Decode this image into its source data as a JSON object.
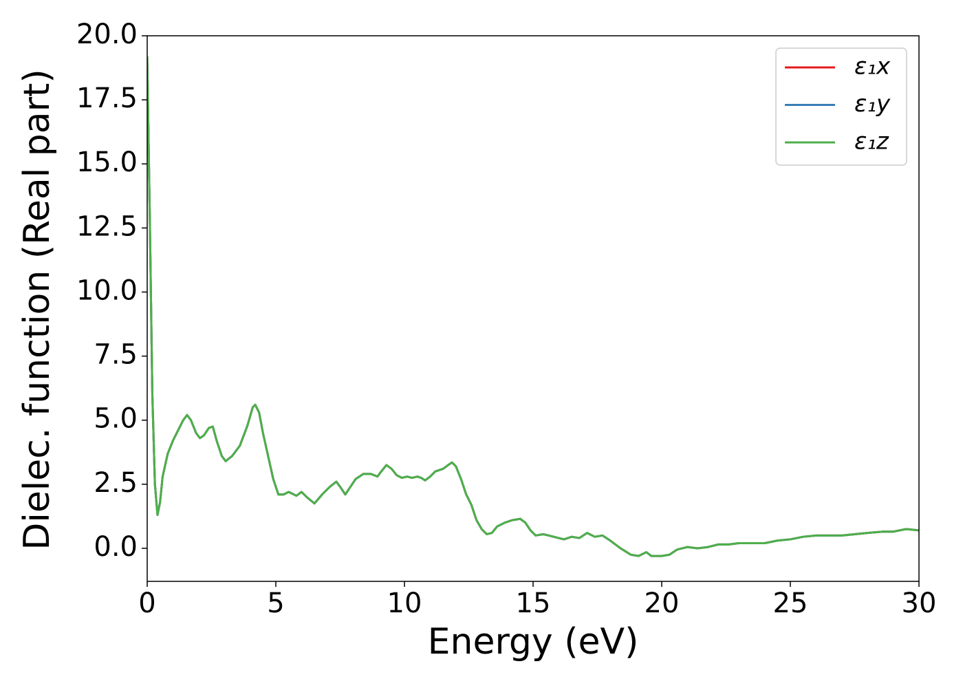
{
  "chart_data": {
    "type": "line",
    "x_label": "Energy (eV)",
    "y_label": "Dielec. function (Real part)",
    "xlim": [
      0,
      30
    ],
    "ylim": [
      -1.29,
      20
    ],
    "xticks": [
      0,
      5,
      10,
      15,
      20,
      25,
      30
    ],
    "yticks": [
      {
        "value": 0,
        "label": "0.0"
      },
      2.5,
      {
        "value": 5,
        "label": "5.0"
      },
      7.5,
      {
        "value": 10,
        "label": "10.0"
      },
      12.5,
      {
        "value": 15,
        "label": "15.0"
      },
      17.5,
      {
        "value": 20,
        "label": "20.0"
      }
    ],
    "legend": "upper right",
    "grid": false,
    "x": [
      0,
      0.1,
      0.2,
      0.3,
      0.4,
      0.5,
      0.6,
      0.8,
      1.0,
      1.2,
      1.4,
      1.55,
      1.7,
      1.9,
      2.05,
      2.2,
      2.4,
      2.55,
      2.7,
      2.9,
      3.05,
      3.3,
      3.6,
      3.9,
      4.1,
      4.2,
      4.35,
      4.5,
      4.7,
      4.9,
      5.1,
      5.3,
      5.5,
      5.8,
      6.0,
      6.2,
      6.5,
      6.8,
      7.1,
      7.35,
      7.5,
      7.7,
      7.9,
      8.1,
      8.4,
      8.7,
      8.95,
      9.1,
      9.3,
      9.5,
      9.7,
      9.9,
      10.1,
      10.3,
      10.5,
      10.65,
      10.8,
      11.0,
      11.2,
      11.5,
      11.7,
      11.85,
      12.0,
      12.2,
      12.4,
      12.6,
      12.8,
      13.0,
      13.2,
      13.4,
      13.6,
      13.9,
      14.2,
      14.5,
      14.7,
      14.9,
      15.1,
      15.4,
      15.8,
      16.2,
      16.5,
      16.8,
      17.1,
      17.4,
      17.7,
      18.0,
      18.4,
      18.8,
      19.1,
      19.4,
      19.6,
      20.0,
      20.3,
      20.6,
      21.0,
      21.4,
      21.8,
      22.2,
      22.6,
      23.0,
      23.5,
      24.0,
      24.5,
      25.0,
      25.5,
      26.0,
      27.0,
      28.0,
      28.6,
      29.0,
      29.5,
      30.0
    ],
    "series": [
      {
        "name": "ε₁x",
        "color": "#e41a1c",
        "values": [
          19.2,
          13,
          6,
          2.5,
          1.3,
          1.8,
          2.8,
          3.7,
          4.2,
          4.6,
          5.0,
          5.2,
          5.0,
          4.5,
          4.3,
          4.4,
          4.7,
          4.75,
          4.2,
          3.6,
          3.4,
          3.6,
          4.0,
          4.8,
          5.5,
          5.6,
          5.3,
          4.5,
          3.6,
          2.7,
          2.1,
          2.1,
          2.2,
          2.05,
          2.2,
          2.0,
          1.75,
          2.1,
          2.4,
          2.6,
          2.4,
          2.1,
          2.4,
          2.7,
          2.9,
          2.9,
          2.8,
          3.0,
          3.25,
          3.1,
          2.85,
          2.75,
          2.8,
          2.75,
          2.8,
          2.75,
          2.65,
          2.8,
          3.0,
          3.1,
          3.25,
          3.35,
          3.2,
          2.7,
          2.1,
          1.7,
          1.1,
          0.75,
          0.55,
          0.6,
          0.85,
          1.0,
          1.1,
          1.15,
          1.0,
          0.7,
          0.5,
          0.55,
          0.45,
          0.35,
          0.45,
          0.4,
          0.6,
          0.45,
          0.5,
          0.3,
          0.0,
          -0.25,
          -0.3,
          -0.15,
          -0.3,
          -0.3,
          -0.25,
          -0.05,
          0.05,
          0.0,
          0.05,
          0.15,
          0.15,
          0.2,
          0.2,
          0.2,
          0.3,
          0.35,
          0.45,
          0.5,
          0.5,
          0.6,
          0.65,
          0.65,
          0.75,
          0.7
        ]
      },
      {
        "name": "ε₁y",
        "color": "#377eb8",
        "values": [
          19.2,
          13,
          6,
          2.5,
          1.3,
          1.8,
          2.8,
          3.7,
          4.2,
          4.6,
          5.0,
          5.2,
          5.0,
          4.5,
          4.3,
          4.4,
          4.7,
          4.75,
          4.2,
          3.6,
          3.4,
          3.6,
          4.0,
          4.8,
          5.5,
          5.6,
          5.3,
          4.5,
          3.6,
          2.7,
          2.1,
          2.1,
          2.2,
          2.05,
          2.2,
          2.0,
          1.75,
          2.1,
          2.4,
          2.6,
          2.4,
          2.1,
          2.4,
          2.7,
          2.9,
          2.9,
          2.8,
          3.0,
          3.25,
          3.1,
          2.85,
          2.75,
          2.8,
          2.75,
          2.8,
          2.75,
          2.65,
          2.8,
          3.0,
          3.1,
          3.25,
          3.35,
          3.2,
          2.7,
          2.1,
          1.7,
          1.1,
          0.75,
          0.55,
          0.6,
          0.85,
          1.0,
          1.1,
          1.15,
          1.0,
          0.7,
          0.5,
          0.55,
          0.45,
          0.35,
          0.45,
          0.4,
          0.6,
          0.45,
          0.5,
          0.3,
          0.0,
          -0.25,
          -0.3,
          -0.15,
          -0.3,
          -0.3,
          -0.25,
          -0.05,
          0.05,
          0.0,
          0.05,
          0.15,
          0.15,
          0.2,
          0.2,
          0.2,
          0.3,
          0.35,
          0.45,
          0.5,
          0.5,
          0.6,
          0.65,
          0.65,
          0.75,
          0.7
        ]
      },
      {
        "name": "ε₁z",
        "color": "#4daf4a",
        "values": [
          19.2,
          13,
          6,
          2.5,
          1.3,
          1.8,
          2.8,
          3.7,
          4.2,
          4.6,
          5.0,
          5.2,
          5.0,
          4.5,
          4.3,
          4.4,
          4.7,
          4.75,
          4.2,
          3.6,
          3.4,
          3.6,
          4.0,
          4.8,
          5.5,
          5.6,
          5.3,
          4.5,
          3.6,
          2.7,
          2.1,
          2.1,
          2.2,
          2.05,
          2.2,
          2.0,
          1.75,
          2.1,
          2.4,
          2.6,
          2.4,
          2.1,
          2.4,
          2.7,
          2.9,
          2.9,
          2.8,
          3.0,
          3.25,
          3.1,
          2.85,
          2.75,
          2.8,
          2.75,
          2.8,
          2.75,
          2.65,
          2.8,
          3.0,
          3.1,
          3.25,
          3.35,
          3.2,
          2.7,
          2.1,
          1.7,
          1.1,
          0.75,
          0.55,
          0.6,
          0.85,
          1.0,
          1.1,
          1.15,
          1.0,
          0.7,
          0.5,
          0.55,
          0.45,
          0.35,
          0.45,
          0.4,
          0.6,
          0.45,
          0.5,
          0.3,
          0.0,
          -0.25,
          -0.3,
          -0.15,
          -0.3,
          -0.3,
          -0.25,
          -0.05,
          0.05,
          0.0,
          0.05,
          0.15,
          0.15,
          0.2,
          0.2,
          0.2,
          0.3,
          0.35,
          0.45,
          0.5,
          0.5,
          0.6,
          0.65,
          0.65,
          0.75,
          0.7
        ]
      }
    ]
  }
}
